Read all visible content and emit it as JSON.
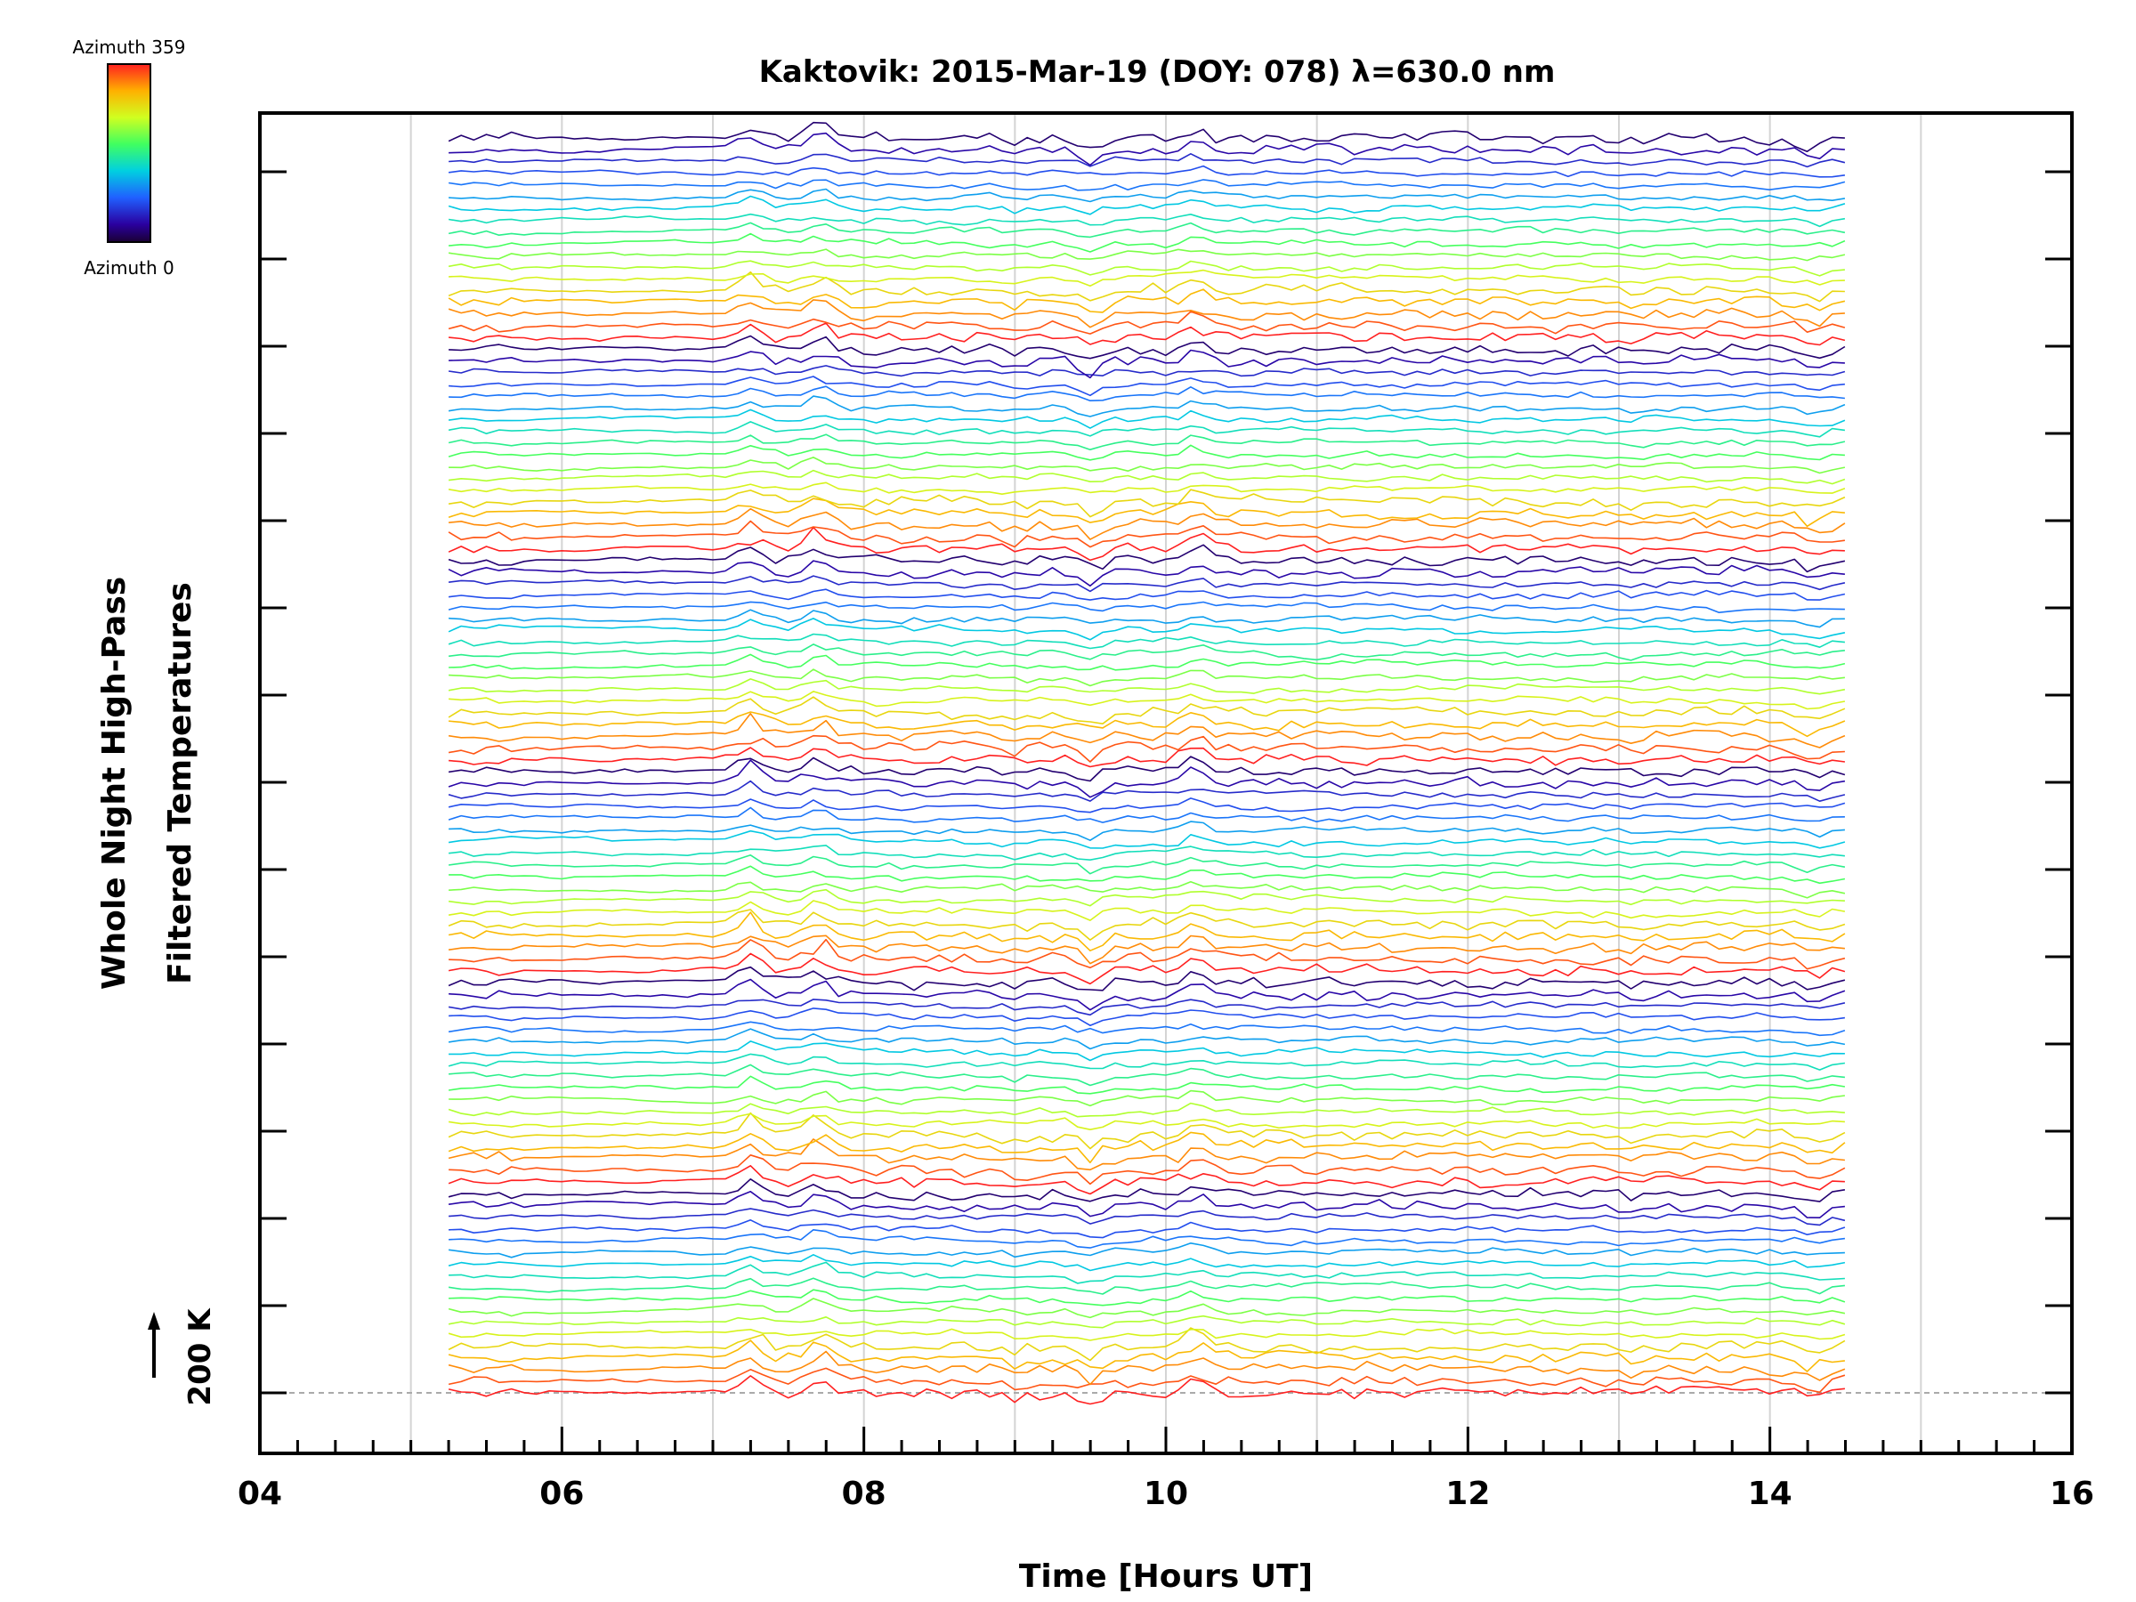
{
  "chart_data": {
    "type": "line",
    "title": "Kaktovik: 2015-Mar-19 (DOY: 078) λ=630.0 nm",
    "xlabel": "Time [Hours UT]",
    "ylabel_line1": "Whole Night High-Pass",
    "ylabel_line2": "Filtered Temperatures",
    "scale_marker": "200 K",
    "xlim": [
      4,
      16
    ],
    "x_tick_labels": [
      "04",
      "06",
      "08",
      "10",
      "12",
      "14",
      "16"
    ],
    "x_tick_values": [
      4,
      6,
      8,
      10,
      12,
      14,
      16
    ],
    "time_range_hours": [
      5.25,
      14.5
    ],
    "n_traces": 108,
    "colorbar": {
      "top_label": "Azimuth 359",
      "bottom_label": "Azimuth 0",
      "min": 0,
      "max": 359
    },
    "grid": true,
    "note": "Stacked high-pass filtered temperature traces, one per azimuth, colored by azimuth (rainbow scale)."
  }
}
